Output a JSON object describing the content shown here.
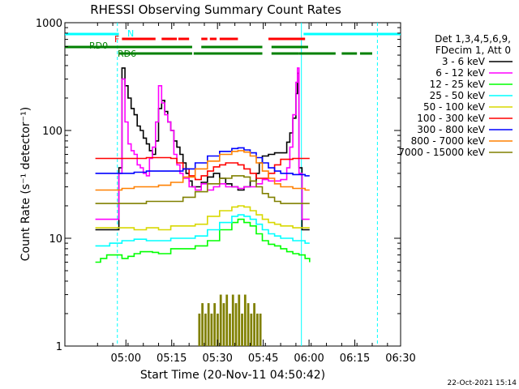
{
  "chart_data": {
    "type": "line",
    "title": "RHESSI Observing Summary Count Rates",
    "xlabel": "Start Time (20-Nov-11 04:50:42)",
    "ylabel": "Count Rate (s⁻¹ detector⁻¹)",
    "y_scale": "log",
    "ylim": [
      1,
      1000
    ],
    "xlim_minutes": [
      -10.7,
      99.3
    ],
    "x_ticks": [
      "05:00",
      "05:15",
      "05:30",
      "05:45",
      "06:00",
      "06:15",
      "06:30"
    ],
    "y_ticks": [
      "1",
      "10",
      "100",
      "1000"
    ],
    "legend_position": "right",
    "legend_header": [
      "Det 1,3,4,5,6,9,",
      "FDecim 1, Att 0"
    ],
    "timestamp": "22-Oct-2021 15:14",
    "flag_labels": {
      "N": "N",
      "F": "F",
      "RD0": "RD0",
      "RD6": "RD6"
    },
    "series": [
      {
        "name": "3 - 6 keV",
        "color": "#000000",
        "points": [
          [
            -0.7,
            12
          ],
          [
            6.5,
            12
          ],
          [
            7,
            45
          ],
          [
            8,
            380
          ],
          [
            9,
            260
          ],
          [
            10,
            200
          ],
          [
            11,
            160
          ],
          [
            12,
            140
          ],
          [
            13,
            110
          ],
          [
            14,
            100
          ],
          [
            15,
            85
          ],
          [
            16,
            75
          ],
          [
            17,
            65
          ],
          [
            18,
            60
          ],
          [
            19,
            80
          ],
          [
            20,
            160
          ],
          [
            21,
            190
          ],
          [
            22,
            150
          ],
          [
            23,
            120
          ],
          [
            24,
            100
          ],
          [
            25,
            80
          ],
          [
            26,
            70
          ],
          [
            27,
            60
          ],
          [
            28,
            50
          ],
          [
            29,
            40
          ],
          [
            30,
            34
          ],
          [
            31,
            30
          ],
          [
            33,
            30
          ],
          [
            34,
            33
          ],
          [
            36,
            37
          ],
          [
            38,
            40
          ],
          [
            40,
            36
          ],
          [
            42,
            32
          ],
          [
            44,
            30
          ],
          [
            46,
            28
          ],
          [
            48,
            30
          ],
          [
            50,
            34
          ],
          [
            52,
            40
          ],
          [
            53,
            50
          ],
          [
            54,
            58
          ],
          [
            56,
            60
          ],
          [
            58,
            62
          ],
          [
            60,
            62
          ],
          [
            62,
            78
          ],
          [
            63,
            95
          ],
          [
            64,
            130
          ],
          [
            65,
            220
          ],
          [
            65.5,
            340
          ],
          [
            66,
            45
          ],
          [
            67,
            12
          ],
          [
            69.5,
            12
          ]
        ]
      },
      {
        "name": "6 - 12 keV",
        "color": "#ff00ff",
        "points": [
          [
            -0.7,
            15
          ],
          [
            6.5,
            15
          ],
          [
            7,
            40
          ],
          [
            8,
            300
          ],
          [
            9,
            120
          ],
          [
            10,
            75
          ],
          [
            11,
            65
          ],
          [
            12,
            60
          ],
          [
            13,
            48
          ],
          [
            14,
            45
          ],
          [
            15,
            40
          ],
          [
            16,
            38
          ],
          [
            17,
            55
          ],
          [
            18,
            70
          ],
          [
            19,
            120
          ],
          [
            20,
            260
          ],
          [
            21,
            180
          ],
          [
            22,
            140
          ],
          [
            23,
            120
          ],
          [
            24,
            100
          ],
          [
            25,
            60
          ],
          [
            26,
            48
          ],
          [
            27,
            40
          ],
          [
            28,
            36
          ],
          [
            30,
            30
          ],
          [
            32,
            28
          ],
          [
            34,
            32
          ],
          [
            36,
            28
          ],
          [
            38,
            30
          ],
          [
            40,
            32
          ],
          [
            42,
            30
          ],
          [
            44,
            30
          ],
          [
            46,
            29
          ],
          [
            48,
            30
          ],
          [
            50,
            30
          ],
          [
            52,
            32
          ],
          [
            54,
            35
          ],
          [
            56,
            34
          ],
          [
            58,
            34
          ],
          [
            60,
            35
          ],
          [
            62,
            45
          ],
          [
            63,
            70
          ],
          [
            64,
            140
          ],
          [
            65,
            280
          ],
          [
            65.5,
            380
          ],
          [
            66,
            40
          ],
          [
            67,
            15
          ],
          [
            69.5,
            15
          ]
        ]
      },
      {
        "name": "12 - 25 keV",
        "color": "#00ff00",
        "points": [
          [
            -0.7,
            6
          ],
          [
            1,
            6.5
          ],
          [
            3,
            7
          ],
          [
            6.5,
            7
          ],
          [
            8,
            6.5
          ],
          [
            10,
            6.8
          ],
          [
            12,
            7.2
          ],
          [
            14,
            7.5
          ],
          [
            16,
            7.5
          ],
          [
            18,
            7.4
          ],
          [
            20,
            7.2
          ],
          [
            24,
            8
          ],
          [
            28,
            8
          ],
          [
            32,
            8.5
          ],
          [
            36,
            9.5
          ],
          [
            40,
            12
          ],
          [
            44,
            14
          ],
          [
            46,
            15
          ],
          [
            48,
            14
          ],
          [
            50,
            13
          ],
          [
            52,
            11
          ],
          [
            54,
            9.5
          ],
          [
            56,
            8.8
          ],
          [
            58,
            8.5
          ],
          [
            60,
            8
          ],
          [
            62,
            7.5
          ],
          [
            64,
            7.2
          ],
          [
            66,
            7
          ],
          [
            68,
            6.5
          ],
          [
            69.5,
            6
          ]
        ]
      },
      {
        "name": "25 - 50 keV",
        "color": "#00ffff",
        "points": [
          [
            -0.7,
            8.5
          ],
          [
            4,
            9
          ],
          [
            8,
            9.5
          ],
          [
            12,
            9.8
          ],
          [
            16,
            9.5
          ],
          [
            20,
            9.5
          ],
          [
            24,
            10
          ],
          [
            28,
            10
          ],
          [
            32,
            10.5
          ],
          [
            36,
            12
          ],
          [
            40,
            14
          ],
          [
            44,
            16
          ],
          [
            46,
            16.5
          ],
          [
            48,
            16
          ],
          [
            50,
            15
          ],
          [
            52,
            13.5
          ],
          [
            54,
            12
          ],
          [
            56,
            11
          ],
          [
            58,
            10.5
          ],
          [
            60,
            10
          ],
          [
            64,
            9.5
          ],
          [
            68,
            9
          ],
          [
            69.5,
            9
          ]
        ]
      },
      {
        "name": "50 - 100 keV",
        "color": "#d8d800",
        "points": [
          [
            -0.7,
            12.5
          ],
          [
            4,
            12.5
          ],
          [
            8,
            12.5
          ],
          [
            12,
            12
          ],
          [
            16,
            12.5
          ],
          [
            20,
            12
          ],
          [
            24,
            13
          ],
          [
            28,
            13
          ],
          [
            32,
            13.5
          ],
          [
            36,
            16
          ],
          [
            40,
            18
          ],
          [
            44,
            19.5
          ],
          [
            46,
            20
          ],
          [
            48,
            19.5
          ],
          [
            50,
            18
          ],
          [
            52,
            16.5
          ],
          [
            54,
            15
          ],
          [
            56,
            14
          ],
          [
            58,
            13.5
          ],
          [
            60,
            13
          ],
          [
            64,
            12.5
          ],
          [
            68,
            12.5
          ],
          [
            69.5,
            12.5
          ]
        ]
      },
      {
        "name": "100 - 300 keV",
        "color": "#ff0000",
        "points": [
          [
            -0.7,
            55
          ],
          [
            4,
            55
          ],
          [
            8,
            55
          ],
          [
            12,
            55
          ],
          [
            16,
            56
          ],
          [
            20,
            56
          ],
          [
            24,
            55
          ],
          [
            26,
            50
          ],
          [
            28,
            44
          ],
          [
            30,
            38
          ],
          [
            32,
            35
          ],
          [
            34,
            38
          ],
          [
            36,
            42
          ],
          [
            38,
            46
          ],
          [
            40,
            48
          ],
          [
            42,
            50
          ],
          [
            44,
            50
          ],
          [
            46,
            48
          ],
          [
            48,
            44
          ],
          [
            50,
            40
          ],
          [
            52,
            36
          ],
          [
            54,
            36
          ],
          [
            56,
            40
          ],
          [
            58,
            48
          ],
          [
            60,
            54
          ],
          [
            64,
            55
          ],
          [
            68,
            55
          ],
          [
            69.5,
            55
          ]
        ]
      },
      {
        "name": "300 - 800 keV",
        "color": "#0000ff",
        "points": [
          [
            -0.7,
            40
          ],
          [
            4,
            40
          ],
          [
            8,
            40
          ],
          [
            12,
            41
          ],
          [
            16,
            42
          ],
          [
            20,
            42
          ],
          [
            24,
            42
          ],
          [
            28,
            44
          ],
          [
            32,
            50
          ],
          [
            36,
            58
          ],
          [
            40,
            64
          ],
          [
            44,
            68
          ],
          [
            46,
            69
          ],
          [
            48,
            66
          ],
          [
            50,
            62
          ],
          [
            52,
            56
          ],
          [
            54,
            50
          ],
          [
            56,
            45
          ],
          [
            58,
            42
          ],
          [
            60,
            40
          ],
          [
            64,
            39
          ],
          [
            68,
            38
          ],
          [
            69.5,
            38
          ]
        ]
      },
      {
        "name": "800 - 7000 keV",
        "color": "#ff8000",
        "points": [
          [
            -0.7,
            28
          ],
          [
            4,
            28
          ],
          [
            8,
            29
          ],
          [
            12,
            30
          ],
          [
            16,
            30
          ],
          [
            20,
            31
          ],
          [
            24,
            33
          ],
          [
            28,
            37
          ],
          [
            32,
            44
          ],
          [
            36,
            52
          ],
          [
            40,
            60
          ],
          [
            44,
            64
          ],
          [
            46,
            65
          ],
          [
            48,
            63
          ],
          [
            50,
            58
          ],
          [
            52,
            50
          ],
          [
            54,
            42
          ],
          [
            56,
            36
          ],
          [
            58,
            32
          ],
          [
            60,
            30
          ],
          [
            64,
            29
          ],
          [
            68,
            28
          ],
          [
            69.5,
            28
          ]
        ]
      },
      {
        "name": "7000 - 15000 keV",
        "color": "#808000",
        "points": [
          [
            -0.7,
            21
          ],
          [
            4,
            21
          ],
          [
            8,
            21
          ],
          [
            12,
            21
          ],
          [
            16,
            22
          ],
          [
            20,
            22
          ],
          [
            24,
            22
          ],
          [
            28,
            24
          ],
          [
            32,
            27
          ],
          [
            36,
            32
          ],
          [
            40,
            36
          ],
          [
            44,
            38
          ],
          [
            46,
            38
          ],
          [
            48,
            37
          ],
          [
            50,
            34
          ],
          [
            52,
            30
          ],
          [
            54,
            26
          ],
          [
            56,
            24
          ],
          [
            58,
            22
          ],
          [
            60,
            21
          ],
          [
            64,
            21
          ],
          [
            68,
            21
          ],
          [
            69.5,
            21
          ]
        ]
      }
    ],
    "extra_histogram": {
      "color": "#808000",
      "points": [
        [
          33,
          2
        ],
        [
          34,
          2.5
        ],
        [
          35,
          2
        ],
        [
          36,
          2.5
        ],
        [
          37,
          2
        ],
        [
          38,
          2.5
        ],
        [
          39,
          2
        ],
        [
          40,
          3
        ],
        [
          41,
          2.5
        ],
        [
          42,
          3
        ],
        [
          43,
          2
        ],
        [
          44,
          3
        ],
        [
          45,
          2.5
        ],
        [
          46,
          3
        ],
        [
          47,
          2
        ],
        [
          48,
          3
        ],
        [
          49,
          2.5
        ],
        [
          50,
          2
        ],
        [
          51,
          2.5
        ],
        [
          52,
          2
        ],
        [
          53,
          2
        ]
      ]
    },
    "flag_bars": [
      {
        "label": "N",
        "color": "#00ffff",
        "segments": [
          [
            -10.7,
            7
          ],
          [
            67.5,
            99.3
          ]
        ]
      },
      {
        "label": "F",
        "color": "#ff0000",
        "segments": [
          [
            8,
            19
          ],
          [
            21,
            26
          ],
          [
            26.5,
            30
          ],
          [
            34,
            36
          ],
          [
            36.8,
            39
          ],
          [
            40,
            46
          ],
          [
            56,
            68
          ]
        ]
      },
      {
        "label": "RD0",
        "color": "#008000",
        "segments": [
          [
            -10.7,
            31
          ],
          [
            34,
            54
          ],
          [
            57,
            69
          ]
        ]
      },
      {
        "label": "RD6",
        "color": "#008000",
        "segments": [
          [
            7,
            31
          ],
          [
            31.5,
            54
          ],
          [
            57,
            66
          ],
          [
            66,
            78
          ],
          [
            80,
            85
          ],
          [
            86,
            90
          ]
        ]
      }
    ],
    "vertical_markers": [
      {
        "x": 6.5,
        "color": "#00ffff",
        "style": "dashed"
      },
      {
        "x": 66.8,
        "color": "#00ffff",
        "style": "solid"
      },
      {
        "x": 91.7,
        "color": "#00ffff",
        "style": "dashed"
      }
    ]
  }
}
